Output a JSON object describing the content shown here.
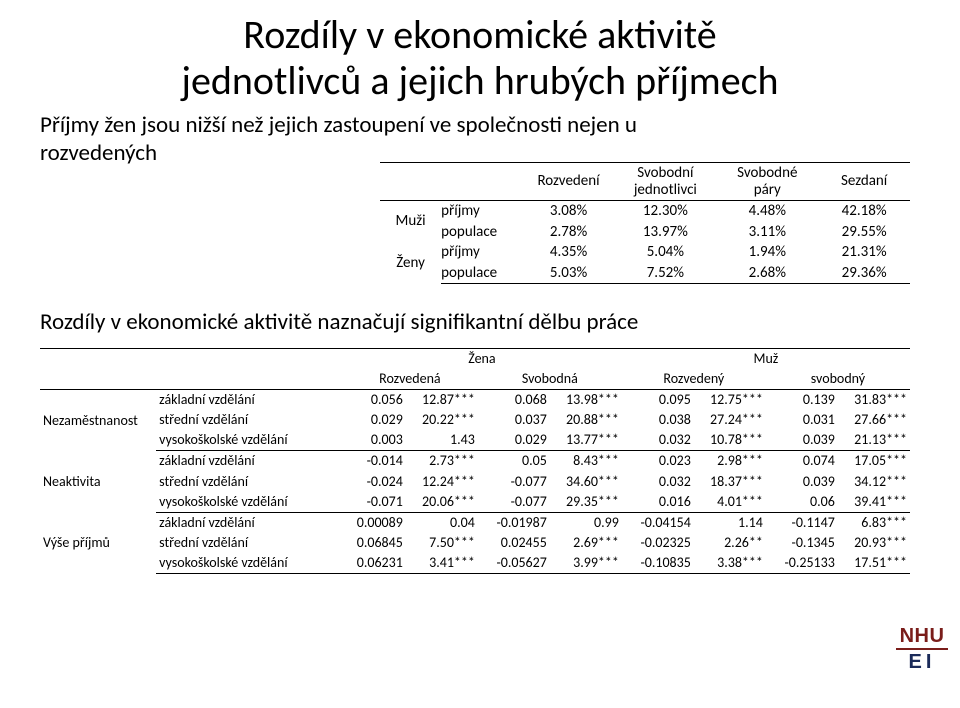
{
  "title_line1": "Rozdíly v ekonomické aktivitě",
  "title_line2": "jednotlivců a jejich hrubých příjmech",
  "subtitle_line1": "Příjmy žen jsou nižší než jejich zastoupení ve společnosti nejen u",
  "subtitle_line2": "rozvedených",
  "midline": "Rozdíly v ekonomické aktivitě naznačují signifikantní dělbu práce",
  "tbl1": {
    "headers": [
      "Rozvedení",
      "Svobodní jednotlivci",
      "Svobodné páry",
      "Sezdaní"
    ],
    "header_wrapped": [
      [
        "Rozvedení"
      ],
      [
        "Svobodní",
        "jednotlivci"
      ],
      [
        "Svobodné",
        "páry"
      ],
      [
        "Sezdaní"
      ]
    ],
    "groups": [
      {
        "label": "Muži",
        "rows": [
          {
            "rowtype": "příjmy",
            "vals": [
              "3.08%",
              "12.30%",
              "4.48%",
              "42.18%"
            ]
          },
          {
            "rowtype": "populace",
            "vals": [
              "2.78%",
              "13.97%",
              "3.11%",
              "29.55%"
            ]
          }
        ]
      },
      {
        "label": "Ženy",
        "rows": [
          {
            "rowtype": "příjmy",
            "vals": [
              "4.35%",
              "5.04%",
              "1.94%",
              "21.31%"
            ]
          },
          {
            "rowtype": "populace",
            "vals": [
              "5.03%",
              "7.52%",
              "2.68%",
              "29.36%"
            ]
          }
        ]
      }
    ]
  },
  "tbl2": {
    "super_headers": [
      "Žena",
      "Muž"
    ],
    "sub_headers": [
      "Rozvedená",
      "Svobodná",
      "Rozvedený",
      "svobodný"
    ],
    "categories": [
      {
        "label": "Nezaměstnanost",
        "rows": [
          {
            "edu": "základní vzdělání",
            "cells": [
              "0.056",
              "12.87***",
              "0.068",
              "13.98***",
              "0.095",
              "12.75***",
              "0.139",
              "31.83***"
            ]
          },
          {
            "edu": "střední vzdělání",
            "cells": [
              "0.029",
              "20.22***",
              "0.037",
              "20.88***",
              "0.038",
              "27.24***",
              "0.031",
              "27.66***"
            ]
          },
          {
            "edu": "vysokoškolské vzdělání",
            "cells": [
              "0.003",
              "1.43",
              "0.029",
              "13.77***",
              "0.032",
              "10.78***",
              "0.039",
              "21.13***"
            ]
          }
        ]
      },
      {
        "label": "Neaktivita",
        "rows": [
          {
            "edu": "základní vzdělání",
            "cells": [
              "-0.014",
              "2.73***",
              "0.05",
              "8.43***",
              "0.023",
              "2.98***",
              "0.074",
              "17.05***"
            ]
          },
          {
            "edu": "střední vzdělání",
            "cells": [
              "-0.024",
              "12.24***",
              "-0.077",
              "34.60***",
              "0.032",
              "18.37***",
              "0.039",
              "34.12***"
            ]
          },
          {
            "edu": "vysokoškolské vzdělání",
            "cells": [
              "-0.071",
              "20.06***",
              "-0.077",
              "29.35***",
              "0.016",
              "4.01***",
              "0.06",
              "39.41***"
            ]
          }
        ]
      },
      {
        "label": "Výše příjmů",
        "rows": [
          {
            "edu": "základní vzdělání",
            "cells": [
              "0.00089",
              "0.04",
              "-0.01987",
              "0.99",
              "-0.04154",
              "1.14",
              "-0.1147",
              "6.83***"
            ]
          },
          {
            "edu": "střední vzdělání",
            "cells": [
              "0.06845",
              "7.50***",
              "0.02455",
              "2.69***",
              "-0.02325",
              "2.26**",
              "-0.1345",
              "20.93***"
            ]
          },
          {
            "edu": "vysokoškolské vzdělání",
            "cells": [
              "0.06231",
              "3.41***",
              "-0.05627",
              "3.99***",
              "-0.10835",
              "3.38***",
              "-0.25133",
              "17.51***"
            ]
          }
        ]
      }
    ]
  },
  "logo": {
    "top": "NHU",
    "bottom": "EI"
  },
  "style": {
    "background_color": "#ffffff",
    "text_color": "#000000",
    "border_color": "#000000",
    "title_fontsize": 40,
    "subtitle_fontsize": 23,
    "tbl1_fontsize": 15,
    "tbl2_fontsize": 14,
    "logo_nhu_color": "#7a1d1a",
    "logo_ei_color": "#1b2b5a"
  }
}
